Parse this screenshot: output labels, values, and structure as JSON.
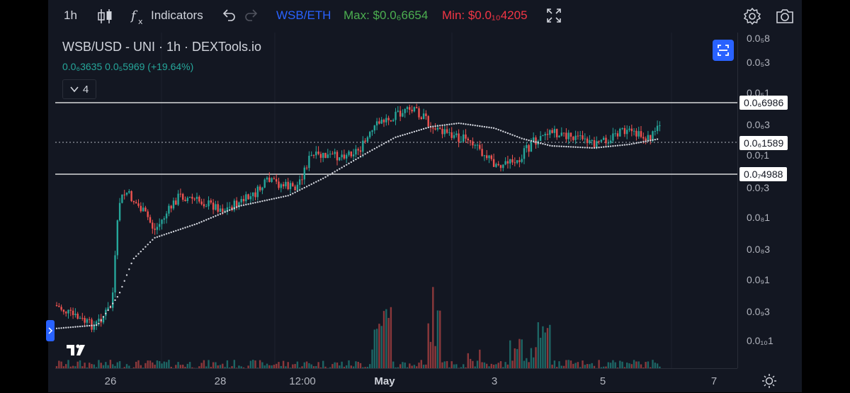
{
  "toolbar": {
    "interval": "1h",
    "indicators_label": "Indicators",
    "symbol_compare": "WSB/ETH",
    "max_label": "Max: $0.0₆6654",
    "min_label": "Min: $0.0₁₀4205"
  },
  "legend": {
    "title": "WSB/USD - UNI · 1h · DEXTools.io",
    "ohlc": "0.0₆3635  0.0₅5969  (+19.64%)",
    "collapsed_count": "4"
  },
  "price_axis": {
    "labels": [
      "0.0₅8",
      "0.0₅3",
      "0.0₅1",
      "0.0₆3",
      "0.0₇1",
      "0.0₇3",
      "0.0₈1",
      "0.0₈3",
      "0.0₉1",
      "0.0₉3",
      "0.0₁₀1"
    ],
    "tags": [
      "0.0₆6986",
      "0.0₆1589",
      "0.0₇4988"
    ]
  },
  "time_axis": {
    "labels": [
      "26",
      "28",
      "12:00",
      "May",
      "3",
      "5",
      "7"
    ]
  },
  "colors": {
    "up": "#26a69a",
    "down": "#ef5350",
    "background": "#131722",
    "accent": "#2962ff",
    "max": "#4caf50",
    "min": "#f23645",
    "symbol": "#2962ff"
  },
  "icons": [
    "candles-icon",
    "fx-indicators-icon",
    "undo-icon",
    "redo-icon",
    "fullscreen-icon",
    "settings-icon",
    "camera-icon",
    "tradingview-logo-icon"
  ]
}
